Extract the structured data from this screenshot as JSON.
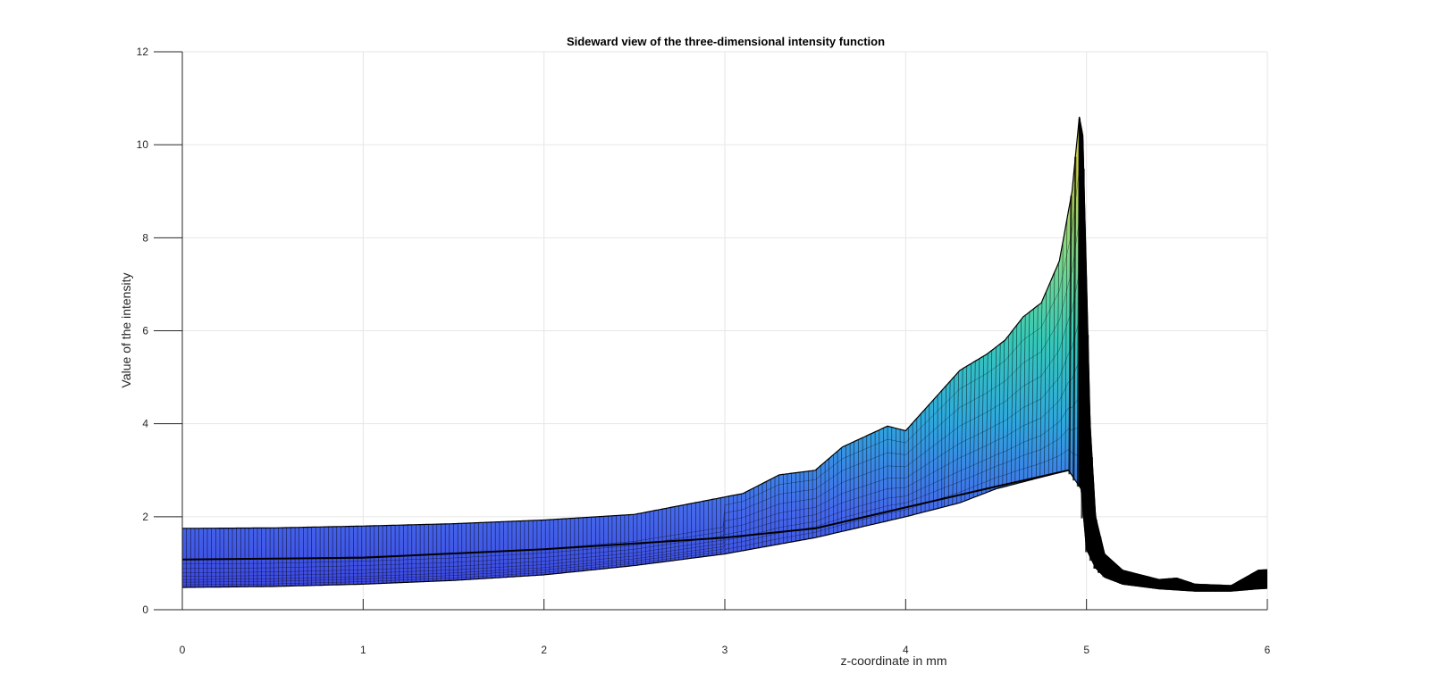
{
  "chart_data": {
    "type": "area",
    "title": "Sideward view of the three-dimensional intensity function",
    "xlabel": "z-coordinate in mm",
    "ylabel": "Value of the intensity",
    "xlim": [
      0,
      6
    ],
    "ylim": [
      0,
      12
    ],
    "xticks": [
      0,
      1,
      2,
      3,
      4,
      5,
      6
    ],
    "yticks": [
      0,
      2,
      4,
      6,
      8,
      10,
      12
    ],
    "grid": true,
    "legend": "none",
    "series": [
      {
        "upper": {
          "x": [
            0,
            0.5,
            1.0,
            1.5,
            2.0,
            2.5,
            2.9,
            3.1,
            3.3,
            3.5,
            3.65,
            3.9,
            4.0,
            4.15,
            4.3,
            4.45,
            4.55,
            4.65,
            4.75,
            4.85,
            4.92,
            4.96,
            4.98,
            5.02,
            5.05,
            5.1,
            5.2,
            5.4,
            5.5,
            5.6,
            5.8,
            5.95,
            6.0
          ],
          "y": [
            1.75,
            1.76,
            1.8,
            1.85,
            1.93,
            2.05,
            2.35,
            2.5,
            2.9,
            3.0,
            3.5,
            3.95,
            3.85,
            4.5,
            5.15,
            5.5,
            5.8,
            6.3,
            6.6,
            7.5,
            9.0,
            10.6,
            10.2,
            4.0,
            2.0,
            1.2,
            0.85,
            0.65,
            0.68,
            0.55,
            0.52,
            0.85,
            0.86
          ]
        },
        "lower": {
          "x": [
            0,
            0.5,
            1.0,
            1.5,
            2.0,
            2.5,
            3.0,
            3.5,
            4.0,
            4.3,
            4.5,
            4.7,
            4.8,
            4.9,
            4.97,
            5.0,
            5.05,
            5.1,
            5.2,
            5.4,
            5.6,
            5.8,
            5.95,
            6.0
          ],
          "y": [
            0.48,
            0.5,
            0.55,
            0.63,
            0.75,
            0.95,
            1.2,
            1.55,
            2.0,
            2.3,
            2.6,
            2.8,
            2.9,
            3.0,
            2.6,
            1.3,
            0.9,
            0.7,
            0.55,
            0.45,
            0.4,
            0.4,
            0.45,
            0.46
          ]
        },
        "ridge": {
          "x": [
            0,
            1.0,
            2.0,
            3.0,
            3.5,
            4.0,
            4.5,
            4.9
          ],
          "y": [
            1.08,
            1.12,
            1.3,
            1.55,
            1.75,
            2.2,
            2.65,
            3.0
          ]
        },
        "colors": [
          "#3b3fe0",
          "#4468ec",
          "#2fa7de",
          "#37c9b8",
          "#7fd88a",
          "#c9d04a"
        ]
      }
    ]
  }
}
